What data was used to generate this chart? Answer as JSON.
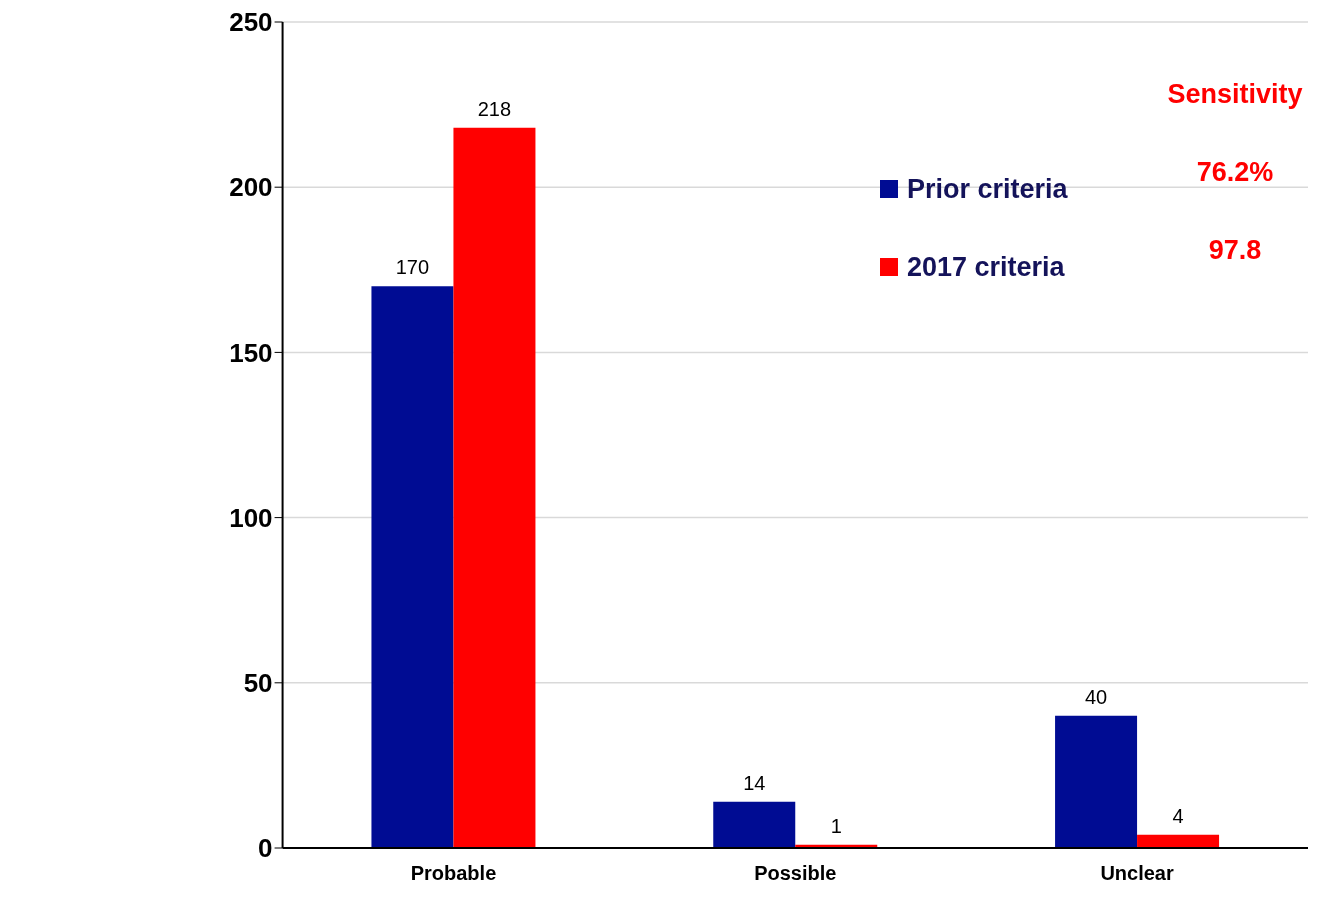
{
  "chart_data": {
    "type": "bar",
    "categories": [
      "Probable",
      "Possible",
      "Unclear"
    ],
    "series": [
      {
        "name": "Prior criteria",
        "color": "#000c93",
        "values": [
          170,
          14,
          40
        ]
      },
      {
        "name": "2017 criteria",
        "color": "#ff0000",
        "values": [
          218,
          1,
          4
        ]
      }
    ],
    "ylim": [
      0,
      250
    ],
    "yticks": [
      0,
      50,
      100,
      150,
      200,
      250
    ],
    "grid": "y",
    "legend": "top right",
    "data_labels": true,
    "annotations": [
      "Sensitivity",
      "76.2%",
      "97.8"
    ]
  }
}
